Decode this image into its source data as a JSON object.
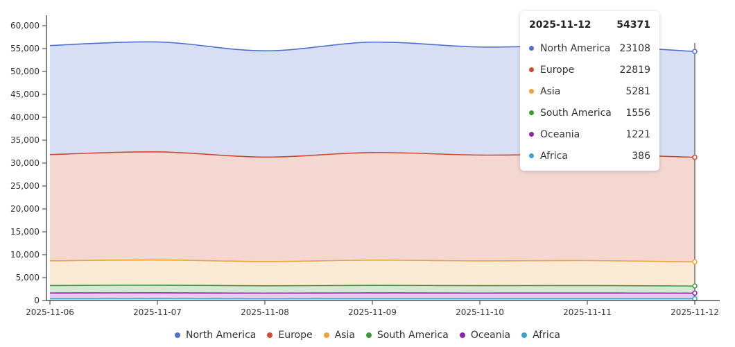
{
  "chart_data": {
    "type": "area",
    "stacked": true,
    "categories": [
      "2025-11-06",
      "2025-11-07",
      "2025-11-08",
      "2025-11-09",
      "2025-11-10",
      "2025-11-11",
      "2025-11-12"
    ],
    "series": [
      {
        "name": "Africa",
        "color": "#3fa0d0",
        "values": [
          390,
          400,
          380,
          395,
          390,
          392,
          386
        ]
      },
      {
        "name": "Oceania",
        "color": "#8e24aa",
        "values": [
          1250,
          1270,
          1230,
          1260,
          1240,
          1245,
          1221
        ]
      },
      {
        "name": "South America",
        "color": "#3a9a3a",
        "values": [
          1620,
          1680,
          1600,
          1650,
          1620,
          1625,
          1556
        ]
      },
      {
        "name": "Asia",
        "color": "#f0a23a",
        "values": [
          5400,
          5500,
          5300,
          5500,
          5400,
          5450,
          5281
        ]
      },
      {
        "name": "Europe",
        "color": "#d2492f",
        "values": [
          23200,
          23600,
          22800,
          23500,
          23100,
          23200,
          22819
        ]
      },
      {
        "name": "North America",
        "color": "#4f6fd1",
        "values": [
          23800,
          24000,
          23200,
          24100,
          23600,
          23700,
          23108
        ]
      }
    ],
    "yticks": [
      "0",
      "5,000",
      "10,000",
      "15,000",
      "20,000",
      "25,000",
      "30,000",
      "35,000",
      "40,000",
      "45,000",
      "50,000",
      "55,000",
      "60,000"
    ],
    "ylim": [
      0,
      60000
    ],
    "legend_position": "bottom",
    "grid": false
  },
  "tooltip": {
    "date": "2025-11-12",
    "total": "54371",
    "rows": [
      {
        "name": "North America",
        "value": "23108",
        "color": "#4f6fd1"
      },
      {
        "name": "Europe",
        "value": "22819",
        "color": "#d2492f"
      },
      {
        "name": "Asia",
        "value": "5281",
        "color": "#f0a23a"
      },
      {
        "name": "South America",
        "value": "1556",
        "color": "#3a9a3a"
      },
      {
        "name": "Oceania",
        "value": "1221",
        "color": "#8e24aa"
      },
      {
        "name": "Africa",
        "value": "386",
        "color": "#3fa0d0"
      }
    ]
  },
  "legend": [
    {
      "name": "North America",
      "color": "#4f6fd1"
    },
    {
      "name": "Europe",
      "color": "#d2492f"
    },
    {
      "name": "Asia",
      "color": "#f0a23a"
    },
    {
      "name": "South America",
      "color": "#3a9a3a"
    },
    {
      "name": "Oceania",
      "color": "#8e24aa"
    },
    {
      "name": "Africa",
      "color": "#3fa0d0"
    }
  ]
}
